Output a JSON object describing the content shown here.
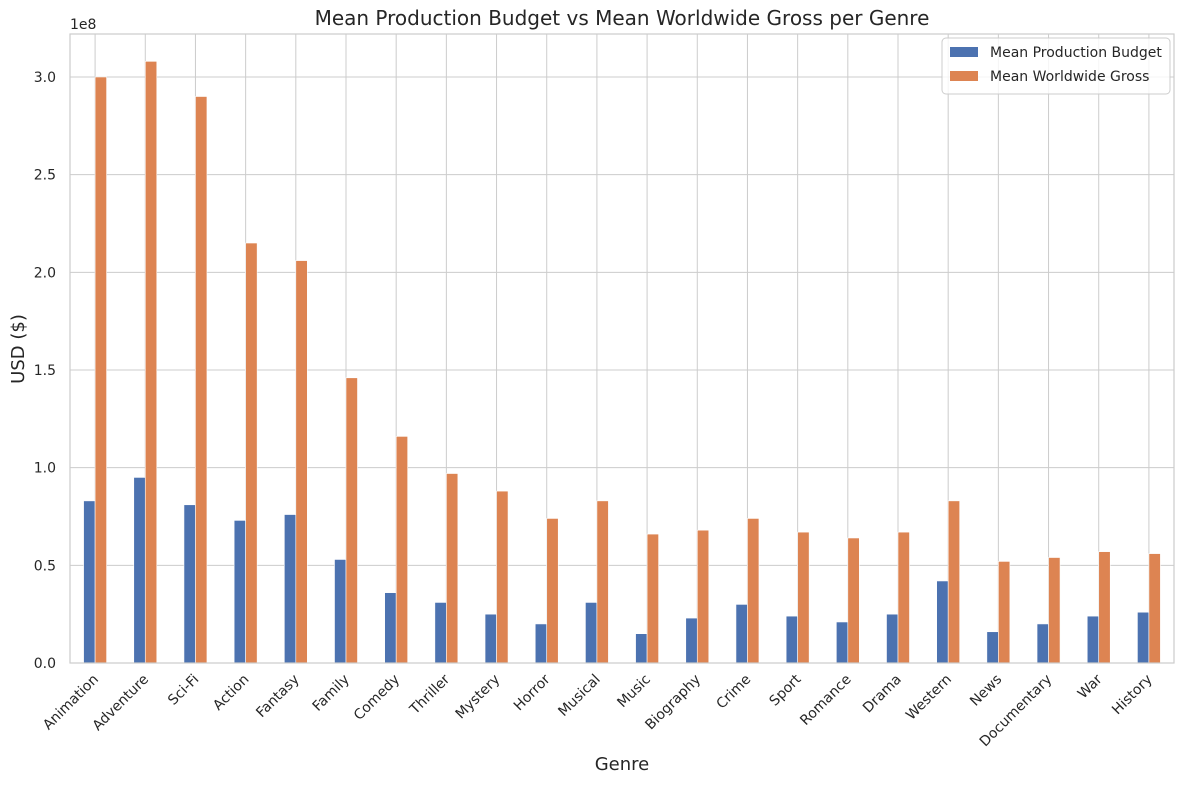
{
  "chart_data": {
    "type": "bar",
    "title": "Mean Production Budget vs Mean Worldwide Gross per Genre",
    "xlabel": "Genre",
    "ylabel": "USD ($)",
    "offset_text": "1e8",
    "ylim": [
      0,
      322000000
    ],
    "yticks": [
      0,
      50000000,
      100000000,
      150000000,
      200000000,
      250000000,
      300000000
    ],
    "ytick_labels": [
      "0.0",
      "0.5",
      "1.0",
      "1.5",
      "2.0",
      "2.5",
      "3.0"
    ],
    "grid": true,
    "legend_position": "top-right",
    "categories": [
      "Animation",
      "Adventure",
      "Sci-Fi",
      "Action",
      "Fantasy",
      "Family",
      "Comedy",
      "Thriller",
      "Mystery",
      "Horror",
      "Musical",
      "Music",
      "Biography",
      "Crime",
      "Sport",
      "Romance",
      "Drama",
      "Western",
      "News",
      "Documentary",
      "War",
      "History"
    ],
    "series": [
      {
        "name": "Mean Production Budget",
        "color": "#4c72b0",
        "values": [
          83000000,
          95000000,
          81000000,
          73000000,
          76000000,
          53000000,
          36000000,
          31000000,
          25000000,
          20000000,
          31000000,
          15000000,
          23000000,
          30000000,
          24000000,
          21000000,
          25000000,
          42000000,
          16000000,
          20000000,
          24000000,
          26000000
        ]
      },
      {
        "name": "Mean Worldwide Gross",
        "color": "#dd8452",
        "values": [
          300000000,
          308000000,
          290000000,
          215000000,
          206000000,
          146000000,
          116000000,
          97000000,
          88000000,
          74000000,
          83000000,
          66000000,
          68000000,
          74000000,
          67000000,
          64000000,
          67000000,
          83000000,
          52000000,
          54000000,
          57000000,
          56000000
        ]
      }
    ]
  }
}
